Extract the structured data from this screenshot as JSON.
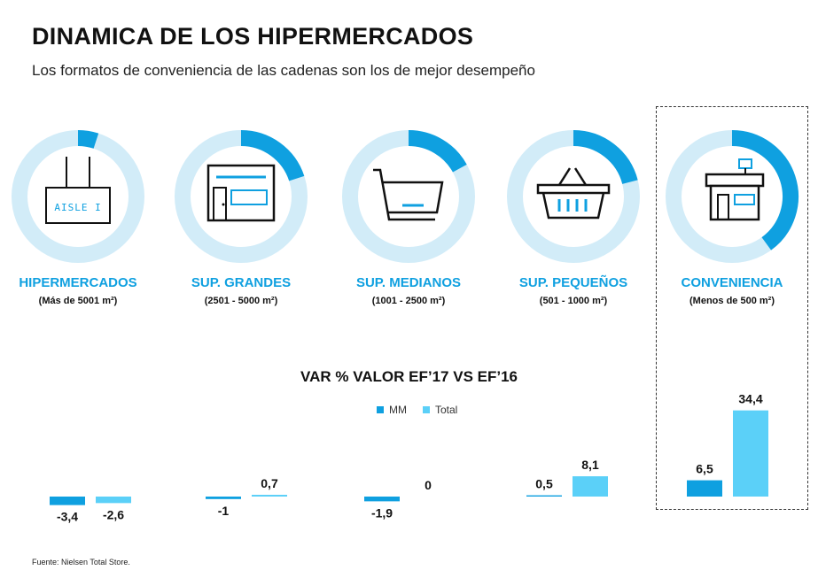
{
  "header": {
    "title": "DINAMICA DE LOS HIPERMERCADOS",
    "subtitle": "Los formatos de conveniencia de las cadenas son los de mejor desempeño"
  },
  "colors": {
    "mm": "#0FA0E0",
    "total": "#5BD0F8",
    "ring_bg": "#D2ECF8",
    "accent_text": "#0FA0E0"
  },
  "formats": [
    {
      "name": "HIPERMERCADOS",
      "size": "(Más de 5001 m²)",
      "icon": "aisle-sign-icon",
      "icon_text": "AISLE I",
      "share": 0.05
    },
    {
      "name": "SUP. GRANDES",
      "size": "(2501 - 5000 m²)",
      "icon": "store-front-icon",
      "share": 0.2
    },
    {
      "name": "SUP. MEDIANOS",
      "size": "(1001 - 2500 m²)",
      "icon": "shopping-cart-icon",
      "share": 0.17
    },
    {
      "name": "SUP. PEQUEÑOS",
      "size": "(501 - 1000 m²)",
      "icon": "shopping-basket-icon",
      "share": 0.21
    },
    {
      "name": "CONVENIENCIA",
      "size": "(Menos de 500 m²)",
      "icon": "convenience-store-icon",
      "share": 0.4
    }
  ],
  "chart_data": {
    "type": "bar",
    "title": "VAR % VALOR EF’17 VS EF’16",
    "categories": [
      "HIPERMERCADOS",
      "SUP. GRANDES",
      "SUP. MEDIANOS",
      "SUP. PEQUEÑOS",
      "CONVENIENCIA"
    ],
    "series": [
      {
        "name": "MM",
        "values": [
          -3.4,
          -1,
          -1.9,
          0.5,
          6.5
        ],
        "labels": [
          "-3,4",
          "-1",
          "-1,9",
          "0,5",
          "6,5"
        ]
      },
      {
        "name": "Total",
        "values": [
          -2.6,
          0.7,
          0,
          8.1,
          34.4
        ],
        "labels": [
          "-2,6",
          "0,7",
          "0",
          "8,1",
          "34,4"
        ]
      }
    ],
    "legend_position": "top-center",
    "grid": false
  },
  "source": "Fuente: Nielsen Total Store."
}
